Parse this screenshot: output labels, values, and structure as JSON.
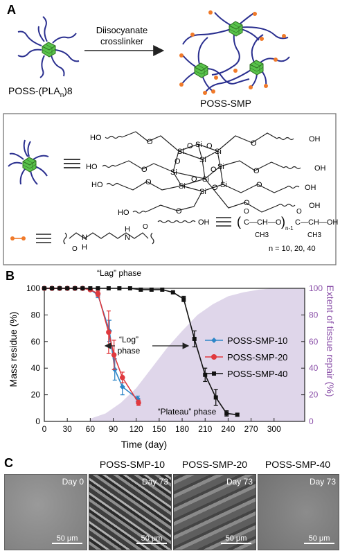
{
  "panelA": {
    "letter": "A",
    "arrow_line1": "Diisocyanate",
    "arrow_line2": "crosslinker",
    "left_label": "POSS-(PLA",
    "left_label_sub": "n",
    "left_label_tail": ")8",
    "right_label": "POSS-SMP",
    "chain_end": "OH",
    "chain_end_ho": "HO",
    "si": "Si",
    "o": "O",
    "pla_n": "n = 10, 20, 40",
    "pla_ch3": "CH3",
    "pla_sub": "n-1",
    "linker_h": "H",
    "linker_n": "N"
  },
  "panelB": {
    "letter": "B",
    "annotations": {
      "lag": "“Lag” phase",
      "log1": "“Log”",
      "log2": "phase",
      "plateau": "“Plateau” phase"
    }
  },
  "chart_data": {
    "type": "line",
    "xlabel": "Time (day)",
    "ylabel": "Mass residue (%)",
    "y2label": "Extent of tissue repair (%)",
    "xlim": [
      0,
      340
    ],
    "ylim": [
      0,
      100
    ],
    "y2lim": [
      0,
      100
    ],
    "xticks": [
      0,
      30,
      60,
      90,
      120,
      150,
      180,
      210,
      240,
      270,
      300
    ],
    "yticks": [
      0,
      20,
      40,
      60,
      80,
      100
    ],
    "legend": "right",
    "series": [
      {
        "name": "POSS-SMP-10",
        "color": "#2e86c8",
        "marker": "diamond",
        "x": [
          0,
          10,
          20,
          30,
          40,
          50,
          60,
          70,
          85,
          92,
          102,
          122
        ],
        "y": [
          100,
          100,
          100,
          100,
          100,
          100,
          99,
          95,
          68,
          39,
          26,
          17
        ],
        "err": [
          0,
          0,
          0,
          0,
          0,
          0,
          1,
          2,
          8,
          8,
          6,
          2
        ]
      },
      {
        "name": "POSS-SMP-20",
        "color": "#e0393e",
        "marker": "circle",
        "x": [
          0,
          10,
          20,
          30,
          40,
          50,
          60,
          70,
          84,
          91,
          102,
          123
        ],
        "y": [
          100,
          100,
          100,
          100,
          100,
          100,
          99,
          96,
          67,
          50,
          33,
          14
        ],
        "err": [
          0,
          0,
          0,
          0,
          0,
          0,
          1,
          2,
          16,
          11,
          4,
          2
        ]
      },
      {
        "name": "POSS-SMP-40",
        "color": "#111111",
        "marker": "square",
        "x": [
          0,
          10,
          20,
          30,
          40,
          50,
          60,
          70,
          84,
          98,
          112,
          126,
          140,
          154,
          168,
          182,
          196,
          210,
          224,
          238,
          252
        ],
        "y": [
          100,
          100,
          100,
          100,
          100,
          100,
          100,
          100,
          100,
          100,
          100,
          99,
          99,
          99,
          97,
          92,
          62,
          35,
          18,
          6,
          5
        ],
        "err": [
          0,
          0,
          0,
          0,
          0,
          0,
          0,
          0,
          0,
          0,
          0,
          0,
          0,
          0,
          0,
          2,
          6,
          5,
          6,
          2,
          1
        ]
      },
      {
        "name": "",
        "color": "#d9cfe6",
        "type": "area",
        "x": [
          60,
          80,
          100,
          120,
          140,
          160,
          180,
          200,
          220,
          240,
          260,
          280,
          300,
          340
        ],
        "y": [
          2,
          6,
          14,
          25,
          40,
          55,
          68,
          80,
          88,
          94,
          97,
          99,
          100,
          100
        ]
      }
    ]
  },
  "panelC": {
    "letter": "C",
    "images": [
      {
        "title": "",
        "day": "Day 0",
        "scale": "50 μm"
      },
      {
        "title": "POSS-SMP-10",
        "day": "Day 73",
        "scale": "50 μm"
      },
      {
        "title": "POSS-SMP-20",
        "day": "Day 73",
        "scale": "50 μm"
      },
      {
        "title": "POSS-SMP-40",
        "day": "Day 73",
        "scale": "50 μm"
      }
    ]
  }
}
